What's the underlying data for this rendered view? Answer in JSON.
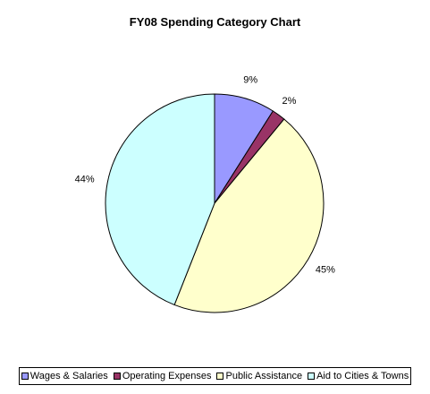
{
  "chart_data": {
    "type": "pie",
    "title": "FY08 Spending Category Chart",
    "categories": [
      "Wages & Salaries",
      "Operating Expenses",
      "Public Assistance",
      "Aid to Cities & Towns"
    ],
    "values": [
      9,
      2,
      45,
      44
    ],
    "labels": [
      "9%",
      "2%",
      "45%",
      "44%"
    ],
    "colors": [
      "#9999ff",
      "#993366",
      "#ffffcc",
      "#ccffff"
    ],
    "legend_position": "bottom"
  }
}
